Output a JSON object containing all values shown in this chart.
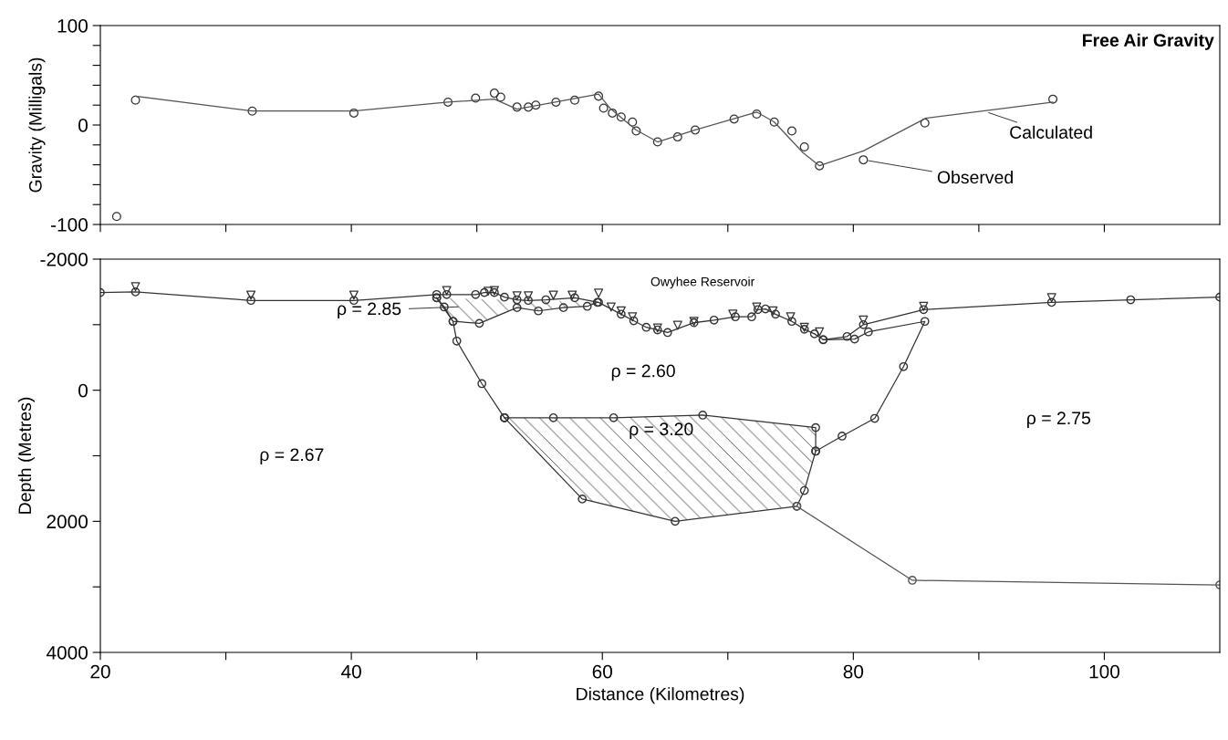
{
  "chart_data": [
    {
      "type": "line",
      "title": "Free Air Gravity",
      "ylabel": "Gravity (Milligals)",
      "xlim": [
        20,
        109.2
      ],
      "ylim": [
        -100,
        100
      ],
      "xticks": [
        {
          "value": 20,
          "label": null
        },
        {
          "value": 30,
          "label": null
        },
        {
          "value": 40,
          "label": null
        },
        {
          "value": 50,
          "label": null
        },
        {
          "value": 60,
          "label": null
        },
        {
          "value": 70,
          "label": null
        },
        {
          "value": 80,
          "label": null
        },
        {
          "value": 90,
          "label": null
        },
        {
          "value": 100,
          "label": null
        }
      ],
      "yticks": [
        -100,
        {
          "value": -80,
          "label": null
        },
        {
          "value": -60,
          "label": null
        },
        {
          "value": -40,
          "label": null
        },
        {
          "value": -20,
          "label": null
        },
        0,
        {
          "value": 20,
          "label": null
        },
        {
          "value": 40,
          "label": null
        },
        {
          "value": 60,
          "label": null
        },
        {
          "value": 80,
          "label": null
        },
        100
      ],
      "tick_labels": "y",
      "grid": false,
      "legend": false,
      "series": [
        {
          "color": "#555555",
          "marker": "none",
          "x": [
            22.8,
            32.1,
            40.2,
            47.7,
            51.4,
            53.2,
            59.7,
            60.6,
            62.7,
            64.4,
            67.4,
            72.3,
            73.7,
            76.0,
            77.3,
            80.8,
            85.8,
            95.9
          ],
          "values": [
            29,
            14,
            14,
            23,
            26,
            16,
            31,
            17,
            -5,
            -17,
            -5,
            13,
            3,
            -28,
            -41,
            -26,
            7,
            23
          ]
        },
        {
          "type": "scatter",
          "color": "#333333",
          "marker": "circle",
          "x": [
            21.3,
            22.8,
            32.1,
            40.2,
            47.7,
            49.9,
            51.4,
            51.9,
            53.2,
            54.1,
            54.7,
            56.3,
            57.8,
            59.7,
            60.1,
            60.8,
            61.5,
            62.4,
            62.7,
            64.4,
            66.0,
            67.4,
            70.5,
            72.3,
            73.7,
            75.1,
            76.1,
            77.3,
            80.8,
            85.7,
            95.9
          ],
          "values": [
            -92,
            25,
            14,
            12,
            23,
            27,
            32,
            28,
            18,
            18,
            20,
            23,
            25,
            29,
            17,
            12,
            8,
            3,
            -6,
            -17,
            -12,
            -5,
            6,
            11,
            3,
            -6,
            -22,
            -41,
            -35,
            2,
            26
          ]
        }
      ],
      "annotations": [
        {
          "text": "Calculated",
          "x": 90.4,
          "y": 14
        },
        {
          "text": "Observed",
          "x": 80.8,
          "y": -35
        }
      ]
    },
    {
      "type": "line",
      "xlabel": "Distance (Kilometres)",
      "ylabel": "Depth (Metres)",
      "xlim": [
        20,
        109.2
      ],
      "ylim": [
        4000,
        -2000
      ],
      "xticks": [
        20,
        {
          "value": 30,
          "label": null
        },
        40,
        {
          "value": 50,
          "label": null
        },
        60,
        {
          "value": 70,
          "label": null
        },
        80,
        {
          "value": 90,
          "label": null
        },
        100
      ],
      "yticks": [
        -2000,
        {
          "value": -1000,
          "label": null
        },
        0,
        {
          "value": 1000,
          "label": null
        },
        2000,
        {
          "value": 3000,
          "label": null
        },
        4000
      ],
      "grid": false,
      "legend": false,
      "series": [
        {
          "color": "#333333",
          "marker": "circle",
          "x": [
            20,
            22.8,
            32.0,
            40.2,
            46.8,
            47.6,
            49.9,
            50.6,
            51.4,
            52.2,
            53.2,
            54.1,
            55.5,
            57.8,
            59.7,
            61.5,
            62.5,
            63.5,
            64.4,
            65.2,
            67.3,
            68.9,
            70.6,
            71.9,
            72.4,
            73.0,
            73.8,
            75.1,
            76.1,
            76.9,
            77.6,
            79.5,
            80.8,
            85.6,
            95.8,
            102.1,
            109.2
          ],
          "values": [
            -1490,
            -1500,
            -1370,
            -1370,
            -1460,
            -1460,
            -1460,
            -1490,
            -1490,
            -1420,
            -1380,
            -1370,
            -1380,
            -1410,
            -1340,
            -1160,
            -1060,
            -960,
            -920,
            -880,
            -1030,
            -1070,
            -1120,
            -1120,
            -1230,
            -1240,
            -1160,
            -1050,
            -930,
            -860,
            -770,
            -820,
            -1000,
            -1230,
            -1340,
            -1380,
            -1420
          ]
        },
        {
          "type": "scatter",
          "color": "#333333",
          "marker": "triangle",
          "x": [
            22.8,
            32.0,
            40.2,
            47.6,
            50.9,
            51.4,
            53.2,
            54.1,
            56.1,
            57.6,
            59.7,
            60.7,
            61.5,
            62.4,
            64.4,
            66.0,
            67.3,
            70.4,
            72.3,
            73.6,
            75.0,
            76.1,
            77.3,
            80.8,
            85.6,
            95.8
          ],
          "values": [
            -1580,
            -1450,
            -1450,
            -1520,
            -1510,
            -1520,
            -1440,
            -1440,
            -1450,
            -1450,
            -1480,
            -1270,
            -1210,
            -1120,
            -950,
            -990,
            -1050,
            -1160,
            -1270,
            -1210,
            -1120,
            -960,
            -890,
            -1070,
            -1280,
            -1410
          ]
        },
        {
          "type": "area",
          "color": "#333333",
          "marker": "circle",
          "x": [
            46.8,
            48.1,
            50.2,
            53.2,
            54.9,
            56.9,
            58.8,
            59.6
          ],
          "values": [
            -1410,
            -1050,
            -1020,
            -1260,
            -1210,
            -1260,
            -1280,
            -1340
          ]
        },
        {
          "color": "#333333",
          "marker": "circle",
          "x": [
            46.8,
            47.4,
            48.1,
            48.4,
            50.4,
            52.2
          ],
          "values": [
            -1410,
            -1270,
            -1050,
            -750,
            -100,
            420
          ]
        },
        {
          "color": "#333333",
          "marker": "circle",
          "x": [
            77.0,
            79.1,
            81.7,
            84.0,
            85.7,
            81.2,
            80.1,
            77.6
          ],
          "values": [
            930,
            700,
            430,
            -360,
            -1050,
            -890,
            -780,
            -770
          ]
        },
        {
          "type": "area",
          "color": "#333333",
          "marker": "circle",
          "x": [
            52.2,
            56.1,
            60.9,
            68.0,
            77.0,
            77.0,
            76.1,
            75.5,
            65.8,
            58.4,
            52.2
          ],
          "values": [
            420,
            420,
            420,
            380,
            570,
            930,
            1530,
            1770,
            2000,
            1660,
            420
          ]
        },
        {
          "color": "#555555",
          "marker": "circle",
          "x": [
            75.5,
            84.7,
            109.2
          ],
          "values": [
            1770,
            2900,
            2970
          ]
        }
      ],
      "annotations": [
        "ρ = 2.85",
        "ρ = 2.60",
        "ρ = 3.20",
        "ρ = 2.67",
        "ρ = 2.75",
        "Owyhee Reservoir"
      ]
    }
  ]
}
